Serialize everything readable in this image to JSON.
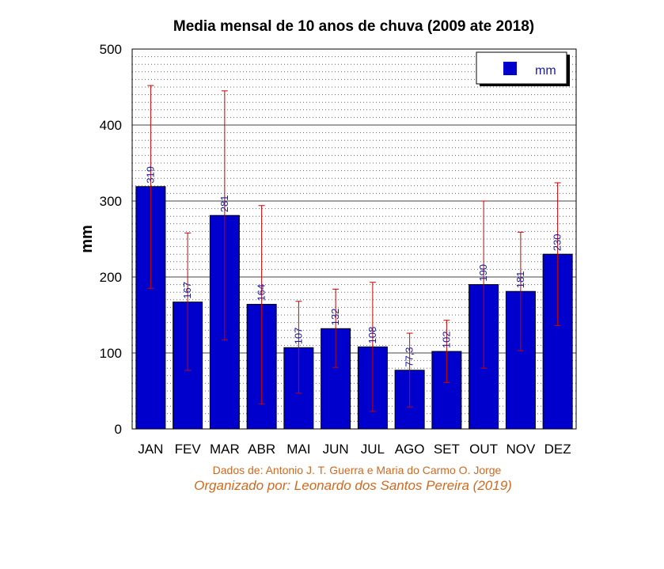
{
  "chart_data": {
    "type": "bar",
    "title": "Media mensal de 10 anos de chuva (2009 ate 2018)",
    "ylabel": "mm",
    "xlabel": "",
    "ylim": [
      0,
      500
    ],
    "yticks": [
      "0",
      "100",
      "200",
      "300",
      "400",
      "500"
    ],
    "categories": [
      "JAN",
      "FEV",
      "MAR",
      "ABR",
      "MAI",
      "JUN",
      "JUL",
      "AGO",
      "SET",
      "OUT",
      "NOV",
      "DEZ"
    ],
    "series": [
      {
        "name": "mm",
        "values": [
          319,
          167,
          281,
          164,
          107,
          132,
          108,
          77.3,
          102,
          190,
          181,
          230
        ],
        "labels": [
          "319",
          "167",
          "281",
          "164",
          "107",
          "132",
          "108",
          "77,3",
          "102",
          "190",
          "181",
          "230"
        ],
        "error_low": [
          185,
          77,
          117,
          33,
          47,
          81,
          23,
          29,
          61,
          80,
          103,
          136
        ],
        "error_high": [
          452,
          258,
          445,
          294,
          168,
          184,
          193,
          126,
          143,
          300,
          259,
          324
        ],
        "color": "#0000cc"
      }
    ],
    "error_bar_color": "#cc0000",
    "grid": "dotted minor, solid major",
    "legend": "top-right"
  },
  "credits": {
    "source": "Dados de: Antonio J. T. Guerra e Maria do Carmo O. Jorge",
    "organized": "Organizado por: Leonardo dos Santos Pereira (2019)"
  }
}
